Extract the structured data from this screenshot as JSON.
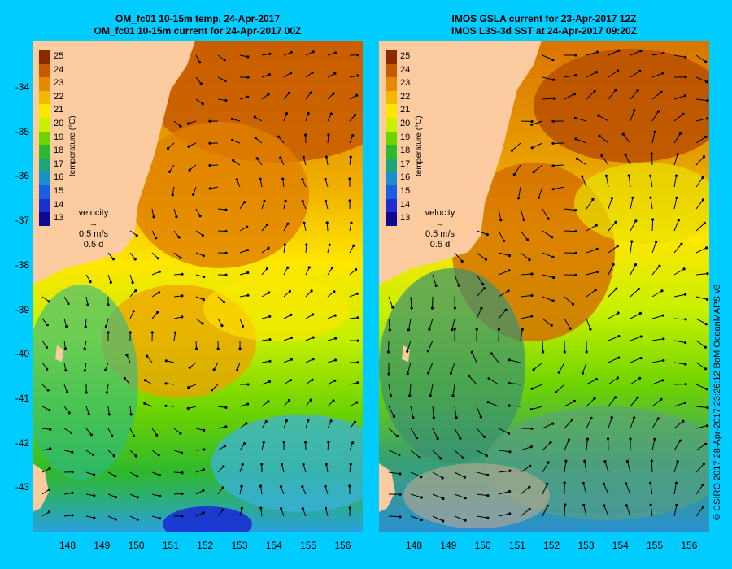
{
  "left_panel": {
    "title_line1": "OM_fc01 10-15m temp. 24-Apr-2017",
    "title_line2": "OM_fc01 10-15m current for 24-Apr-2017 00Z"
  },
  "right_panel": {
    "title_line1": "IMOS GSLA current for 23-Apr-2017 12Z",
    "title_line2": "IMOS L3S-3d SST at 24-Apr-2017 09:20Z"
  },
  "colorbar": {
    "title": "temperature (°C)",
    "labels": [
      "25",
      "24",
      "23",
      "22",
      "21",
      "20",
      "19",
      "18",
      "17",
      "16",
      "15",
      "14",
      "13"
    ],
    "colors": [
      "#8b2a00",
      "#c75a00",
      "#e68a00",
      "#f5b800",
      "#ffe600",
      "#c8f000",
      "#6ed400",
      "#2eb82e",
      "#1fa37a",
      "#1a8fd0",
      "#1a5fe0",
      "#1a2fd0",
      "#0a0a90"
    ]
  },
  "velocity_legend": {
    "title": "velocity",
    "speed": "0.5 m/s",
    "duration": "0.5 d"
  },
  "y_axis": {
    "labels": [
      "-34",
      "-35",
      "-36",
      "-37",
      "-38",
      "-39",
      "-40",
      "-41",
      "-42",
      "-43"
    ]
  },
  "x_axis": {
    "labels": [
      "148",
      "149",
      "150",
      "151",
      "152",
      "153",
      "154",
      "155",
      "156"
    ]
  },
  "credit": "© CSIRO 2017   28-Apr-2017 23:26:12 BoM OceanMAPS v3",
  "colors": {
    "background": "#00ccff",
    "land": "#fdcba0",
    "frame": "#000000"
  }
}
